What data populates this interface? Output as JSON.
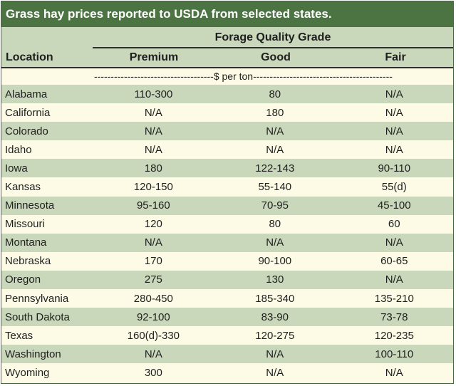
{
  "title": "Grass hay prices reported to USDA from selected states.",
  "header": {
    "group_label": "Forage Quality Grade",
    "location_label": "Location",
    "columns": [
      "Premium",
      "Good",
      "Fair"
    ],
    "unit_label": "------------------------------------$ per ton------------------------------------------"
  },
  "rows": [
    {
      "location": "Alabama",
      "premium": "110-300",
      "good": "80",
      "fair": "N/A"
    },
    {
      "location": "California",
      "premium": "N/A",
      "good": "180",
      "fair": "N/A"
    },
    {
      "location": "Colorado",
      "premium": "N/A",
      "good": "N/A",
      "fair": "N/A"
    },
    {
      "location": "Idaho",
      "premium": "N/A",
      "good": "N/A",
      "fair": "N/A"
    },
    {
      "location": "Iowa",
      "premium": "180",
      "good": "122-143",
      "fair": "90-110"
    },
    {
      "location": "Kansas",
      "premium": "120-150",
      "good": "55-140",
      "fair": "55(d)"
    },
    {
      "location": "Minnesota",
      "premium": "95-160",
      "good": "70-95",
      "fair": "45-100"
    },
    {
      "location": "Missouri",
      "premium": "120",
      "good": "80",
      "fair": "60"
    },
    {
      "location": "Montana",
      "premium": "N/A",
      "good": "N/A",
      "fair": "N/A"
    },
    {
      "location": "Nebraska",
      "premium": "170",
      "good": "90-100",
      "fair": "60-65"
    },
    {
      "location": "Oregon",
      "premium": "275",
      "good": "130",
      "fair": "N/A"
    },
    {
      "location": "Pennsylvania",
      "premium": "280-450",
      "good": "185-340",
      "fair": "135-210"
    },
    {
      "location": "South Dakota",
      "premium": "92-100",
      "good": "83-90",
      "fair": "73-78"
    },
    {
      "location": "Texas",
      "premium": "160(d)-330",
      "good": "120-275",
      "fair": "120-235"
    },
    {
      "location": "Washington",
      "premium": "N/A",
      "good": "N/A",
      "fair": "100-110"
    },
    {
      "location": "Wyoming",
      "premium": "300",
      "good": "N/A",
      "fair": "N/A"
    }
  ]
}
